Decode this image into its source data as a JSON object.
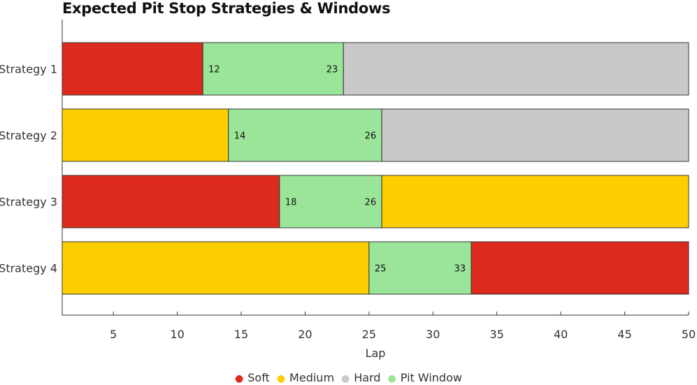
{
  "chart_data": {
    "type": "bar",
    "orientation": "horizontal-stacked",
    "title": "Expected Pit Stop Strategies & Windows",
    "xlabel": "Lap",
    "ylabel": "",
    "xlim": [
      1,
      50
    ],
    "xticks": [
      5,
      10,
      15,
      20,
      25,
      30,
      35,
      40,
      45,
      50
    ],
    "grid": false,
    "legend_position": "bottom",
    "categories": [
      "Strategy 1",
      "Strategy 2",
      "Strategy 3",
      "Strategy 4"
    ],
    "compounds": {
      "Soft": "#dc2a1c",
      "Medium": "#fdcf00",
      "Hard": "#c9c9c9",
      "Pit Window": "#9be59b"
    },
    "legend": [
      "Soft",
      "Medium",
      "Hard",
      "Pit Window"
    ],
    "strategies": [
      {
        "label": "Strategy 1",
        "segments": [
          {
            "compound": "Soft",
            "start": 1,
            "end": 12
          },
          {
            "compound": "Pit Window",
            "start": 12,
            "end": 23
          },
          {
            "compound": "Hard",
            "start": 23,
            "end": 50
          }
        ],
        "window": [
          "12",
          "23"
        ]
      },
      {
        "label": "Strategy 2",
        "segments": [
          {
            "compound": "Medium",
            "start": 1,
            "end": 14
          },
          {
            "compound": "Pit Window",
            "start": 14,
            "end": 26
          },
          {
            "compound": "Hard",
            "start": 26,
            "end": 50
          }
        ],
        "window": [
          "14",
          "26"
        ]
      },
      {
        "label": "Strategy 3",
        "segments": [
          {
            "compound": "Soft",
            "start": 1,
            "end": 18
          },
          {
            "compound": "Pit Window",
            "start": 18,
            "end": 26
          },
          {
            "compound": "Medium",
            "start": 26,
            "end": 50
          }
        ],
        "window": [
          "18",
          "26"
        ]
      },
      {
        "label": "Strategy 4",
        "segments": [
          {
            "compound": "Medium",
            "start": 1,
            "end": 25
          },
          {
            "compound": "Pit Window",
            "start": 25,
            "end": 33
          },
          {
            "compound": "Soft",
            "start": 33,
            "end": 50
          }
        ],
        "window": [
          "25",
          "33"
        ]
      }
    ]
  }
}
